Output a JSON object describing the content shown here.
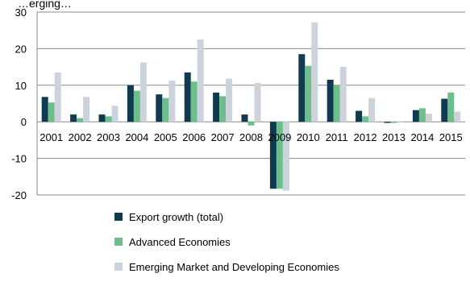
{
  "chart_data": {
    "type": "bar",
    "title": "…erging…",
    "xlabel": "",
    "ylabel": "",
    "categories": [
      "2001",
      "2002",
      "2003",
      "2004",
      "2005",
      "2006",
      "2007",
      "2008",
      "2009",
      "2010",
      "2011",
      "2012",
      "2013",
      "2014",
      "2015"
    ],
    "ylim": [
      -20,
      30
    ],
    "yticks": [
      -20,
      -10,
      0,
      10,
      20,
      30
    ],
    "grid": true,
    "legend_position": "bottom",
    "series": [
      {
        "name": "Export growth (total)",
        "color": "#0f3a4f",
        "values": [
          6.8,
          2.0,
          2.0,
          10.0,
          7.5,
          13.5,
          8.0,
          2.0,
          -18.3,
          18.5,
          11.5,
          3.0,
          -0.3,
          3.2,
          6.3
        ]
      },
      {
        "name": "Advanced Economies",
        "color": "#6cbf8a",
        "values": [
          5.3,
          1.0,
          1.5,
          8.5,
          6.5,
          11.0,
          7.0,
          -1.0,
          -18.3,
          15.3,
          10.0,
          1.5,
          -0.3,
          3.7,
          8.0
        ]
      },
      {
        "name": "Emerging Market and Developing Economies",
        "color": "#cdd3dd",
        "values": [
          13.5,
          6.8,
          4.4,
          16.2,
          11.3,
          22.5,
          11.8,
          10.6,
          -18.8,
          27.2,
          15.0,
          6.5,
          -0.2,
          2.2,
          2.8
        ]
      }
    ]
  }
}
